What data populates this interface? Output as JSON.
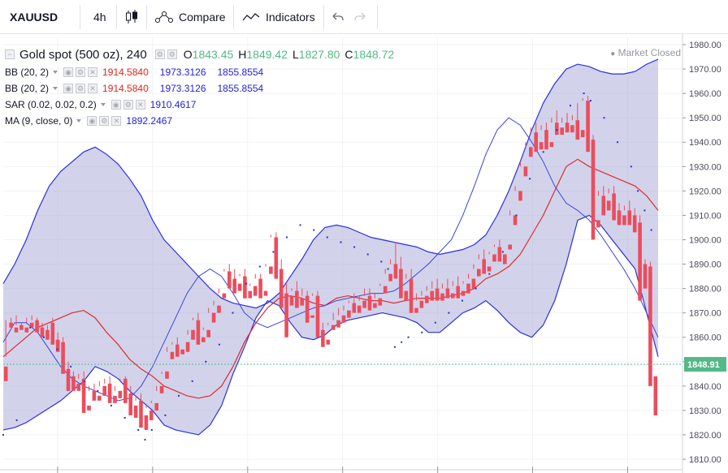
{
  "toolbar": {
    "symbol": "XAUUSD",
    "interval": "4h",
    "compare_label": "Compare",
    "indicators_label": "Indicators"
  },
  "legend": {
    "title": "Gold spot (500 oz), 240",
    "o_label": "O",
    "o_value": "1843.45",
    "h_label": "H",
    "h_value": "1849.42",
    "l_label": "L",
    "l_value": "1827.80",
    "c_label": "C",
    "c_value": "1848.72",
    "indicators": [
      {
        "label": "BB (20, 2)",
        "v1": "1914.5840",
        "v2": "1973.3126",
        "v3": "1855.8554"
      },
      {
        "label": "BB (20, 2)",
        "v1": "1914.5840",
        "v2": "1973.3126",
        "v3": "1855.8554"
      },
      {
        "label": "SAR (0.02, 0.02, 0.2)",
        "v1": "1910.4617"
      },
      {
        "label": "MA (9, close, 0)",
        "v1": "1892.2467"
      }
    ]
  },
  "market_status": "Market Closed",
  "price_label": "1848.91",
  "colors": {
    "up": "#53b987",
    "down": "#eb4d5c",
    "band_fill": "#9c9ed3",
    "band_line": "#2c2ee0",
    "basis": "#e02a2a",
    "ma": "#3b43e0",
    "sar": "#2233cc",
    "price_tag": "#53b987",
    "value_blue": "#2323d6",
    "value_red": "#e2251b"
  },
  "chart_data": {
    "type": "candlestick",
    "ylim": [
      1808,
      1983
    ],
    "yticks": [
      "1810.00",
      "1820.00",
      "1830.00",
      "1840.00",
      "1850.00",
      "1860.00",
      "1870.00",
      "1880.00",
      "1890.00",
      "1900.00",
      "1910.00",
      "1920.00",
      "1930.00",
      "1940.00",
      "1950.00",
      "1960.00",
      "1970.00",
      "1980.00"
    ],
    "last_price": 1848.91,
    "candles": [
      [
        1848,
        1867,
        1852,
        1842
      ],
      [
        1866,
        1868,
        1863,
        1864
      ],
      [
        1864,
        1869,
        1865,
        1862
      ],
      [
        1865,
        1866,
        1864,
        1863
      ],
      [
        1864,
        1868,
        1866,
        1862
      ],
      [
        1866,
        1869,
        1867,
        1864
      ],
      [
        1867,
        1868,
        1864,
        1862
      ],
      [
        1864,
        1866,
        1863,
        1860
      ],
      [
        1863,
        1865,
        1862,
        1859
      ],
      [
        1866,
        1868,
        1859,
        1857
      ],
      [
        1859,
        1862,
        1858,
        1854
      ],
      [
        1858,
        1860,
        1847,
        1845
      ],
      [
        1847,
        1850,
        1844,
        1838
      ],
      [
        1844,
        1846,
        1841,
        1838
      ],
      [
        1841,
        1845,
        1843,
        1838
      ],
      [
        1843,
        1846,
        1832,
        1829
      ],
      [
        1832,
        1840,
        1838,
        1830
      ],
      [
        1838,
        1841,
        1836,
        1834
      ],
      [
        1836,
        1842,
        1840,
        1834
      ],
      [
        1840,
        1843,
        1841,
        1836
      ],
      [
        1841,
        1844,
        1836,
        1833
      ],
      [
        1836,
        1840,
        1838,
        1833
      ],
      [
        1838,
        1842,
        1843,
        1835
      ],
      [
        1843,
        1844,
        1837,
        1833
      ],
      [
        1837,
        1840,
        1832,
        1828
      ],
      [
        1832,
        1836,
        1834,
        1827
      ],
      [
        1834,
        1837,
        1828,
        1823
      ],
      [
        1828,
        1832,
        1831,
        1822
      ],
      [
        1830,
        1834,
        1833,
        1826
      ],
      [
        1833,
        1838,
        1840,
        1830
      ],
      [
        1840,
        1845,
        1846,
        1837
      ],
      [
        1846,
        1856,
        1854,
        1843
      ],
      [
        1854,
        1858,
        1857,
        1851
      ],
      [
        1857,
        1860,
        1855,
        1852
      ],
      [
        1855,
        1858,
        1858,
        1853
      ],
      [
        1858,
        1861,
        1863,
        1854
      ],
      [
        1863,
        1868,
        1867,
        1859
      ],
      [
        1867,
        1870,
        1860,
        1857
      ],
      [
        1860,
        1864,
        1863,
        1858
      ],
      [
        1863,
        1872,
        1870,
        1860
      ],
      [
        1870,
        1875,
        1873,
        1866
      ],
      [
        1873,
        1880,
        1878,
        1870
      ],
      [
        1878,
        1888,
        1887,
        1876
      ],
      [
        1887,
        1890,
        1884,
        1880
      ],
      [
        1884,
        1888,
        1882,
        1878
      ],
      [
        1882,
        1886,
        1885,
        1879
      ],
      [
        1885,
        1888,
        1879,
        1876
      ],
      [
        1879,
        1882,
        1881,
        1876
      ],
      [
        1881,
        1886,
        1884,
        1877
      ],
      [
        1884,
        1886,
        1879,
        1876
      ],
      [
        1879,
        1890,
        1889,
        1877
      ],
      [
        1889,
        1902,
        1901,
        1886
      ],
      [
        1901,
        1903,
        1888,
        1884
      ],
      [
        1888,
        1892,
        1878,
        1872
      ],
      [
        1878,
        1882,
        1877,
        1860
      ],
      [
        1877,
        1880,
        1879,
        1873
      ],
      [
        1879,
        1883,
        1876,
        1872
      ],
      [
        1876,
        1880,
        1877,
        1873
      ],
      [
        1877,
        1879,
        1869,
        1866
      ],
      [
        1869,
        1878,
        1877,
        1868
      ],
      [
        1877,
        1879,
        1863,
        1860
      ],
      [
        1863,
        1866,
        1859,
        1856
      ],
      [
        1859,
        1866,
        1865,
        1857
      ],
      [
        1865,
        1870,
        1867,
        1863
      ],
      [
        1867,
        1872,
        1869,
        1864
      ],
      [
        1869,
        1873,
        1871,
        1866
      ],
      [
        1871,
        1875,
        1874,
        1868
      ],
      [
        1874,
        1878,
        1873,
        1870
      ],
      [
        1873,
        1877,
        1875,
        1870
      ],
      [
        1875,
        1880,
        1877,
        1872
      ],
      [
        1877,
        1880,
        1874,
        1871
      ],
      [
        1874,
        1878,
        1876,
        1872
      ],
      [
        1876,
        1882,
        1881,
        1873
      ],
      [
        1881,
        1888,
        1886,
        1878
      ],
      [
        1886,
        1892,
        1890,
        1883
      ],
      [
        1890,
        1899,
        1888,
        1884
      ],
      [
        1888,
        1893,
        1879,
        1876
      ],
      [
        1879,
        1886,
        1884,
        1875
      ],
      [
        1884,
        1888,
        1872,
        1870
      ],
      [
        1872,
        1878,
        1875,
        1870
      ],
      [
        1875,
        1879,
        1877,
        1872
      ],
      [
        1877,
        1881,
        1879,
        1874
      ],
      [
        1879,
        1883,
        1880,
        1875
      ],
      [
        1880,
        1884,
        1878,
        1875
      ],
      [
        1878,
        1882,
        1880,
        1875
      ],
      [
        1880,
        1884,
        1878,
        1876
      ],
      [
        1878,
        1883,
        1881,
        1876
      ],
      [
        1881,
        1885,
        1879,
        1876
      ],
      [
        1879,
        1883,
        1882,
        1877
      ],
      [
        1882,
        1886,
        1884,
        1878
      ],
      [
        1884,
        1890,
        1888,
        1880
      ],
      [
        1888,
        1894,
        1892,
        1885
      ],
      [
        1892,
        1896,
        1889,
        1886
      ],
      [
        1889,
        1895,
        1894,
        1887
      ],
      [
        1894,
        1898,
        1897,
        1891
      ],
      [
        1897,
        1900,
        1894,
        1891
      ],
      [
        1894,
        1898,
        1898,
        1890
      ],
      [
        1898,
        1912,
        1910,
        1896
      ],
      [
        1910,
        1922,
        1920,
        1906
      ],
      [
        1920,
        1932,
        1930,
        1916
      ],
      [
        1930,
        1940,
        1938,
        1926
      ],
      [
        1938,
        1946,
        1944,
        1934
      ],
      [
        1944,
        1948,
        1940,
        1936
      ],
      [
        1940,
        1947,
        1945,
        1937
      ],
      [
        1945,
        1948,
        1940,
        1937
      ],
      [
        1940,
        1950,
        1948,
        1938
      ],
      [
        1948,
        1953,
        1946,
        1943
      ],
      [
        1946,
        1950,
        1948,
        1943
      ],
      [
        1948,
        1952,
        1947,
        1944
      ],
      [
        1947,
        1951,
        1949,
        1944
      ],
      [
        1949,
        1956,
        1945,
        1941
      ],
      [
        1945,
        1958,
        1957,
        1942
      ],
      [
        1957,
        1959,
        1941,
        1936
      ],
      [
        1941,
        1943,
        1908,
        1900
      ],
      [
        1908,
        1920,
        1918,
        1905
      ],
      [
        1918,
        1922,
        1916,
        1910
      ],
      [
        1916,
        1921,
        1919,
        1912
      ],
      [
        1919,
        1922,
        1912,
        1908
      ],
      [
        1912,
        1915,
        1910,
        1906
      ],
      [
        1910,
        1914,
        1912,
        1906
      ],
      [
        1912,
        1916,
        1910,
        1906
      ],
      [
        1910,
        1913,
        1907,
        1903
      ],
      [
        1907,
        1910,
        1890,
        1875
      ],
      [
        1890,
        1892,
        1889,
        1880
      ],
      [
        1889,
        1891,
        1844,
        1840
      ],
      [
        1844,
        1849,
        1849,
        1828
      ]
    ],
    "bb_upper": [
      1882,
      1890,
      1900,
      1912,
      1922,
      1928,
      1932,
      1936,
      1938,
      1935,
      1931,
      1925,
      1918,
      1908,
      1900,
      1895,
      1890,
      1885,
      1880,
      1876,
      1874,
      1873,
      1872,
      1874,
      1878,
      1885,
      1892,
      1900,
      1905,
      1906,
      1905,
      1903,
      1901,
      1900,
      1899,
      1898,
      1897,
      1895,
      1894,
      1895,
      1896,
      1898,
      1902,
      1910,
      1920,
      1932,
      1945,
      1956,
      1964,
      1970,
      1972,
      1971,
      1969,
      1968,
      1968,
      1969,
      1972,
      1974
    ],
    "bb_lower": [
      1822,
      1823,
      1825,
      1828,
      1831,
      1834,
      1838,
      1842,
      1848,
      1846,
      1843,
      1838,
      1834,
      1830,
      1824,
      1822,
      1821,
      1820,
      1824,
      1832,
      1845,
      1856,
      1868,
      1875,
      1873,
      1866,
      1860,
      1859,
      1861,
      1865,
      1867,
      1868,
      1869,
      1870,
      1869,
      1868,
      1866,
      1862,
      1862,
      1866,
      1870,
      1872,
      1875,
      1871,
      1866,
      1862,
      1860,
      1865,
      1875,
      1890,
      1908,
      1910,
      1906,
      1900,
      1894,
      1888,
      1870,
      1852
    ],
    "bb_basis": [
      1852,
      1856,
      1860,
      1864,
      1866,
      1868,
      1870,
      1871,
      1868,
      1862,
      1857,
      1851,
      1847,
      1844,
      1840,
      1838,
      1836,
      1835,
      1836,
      1840,
      1848,
      1858,
      1866,
      1872,
      1876,
      1877,
      1876,
      1874,
      1873,
      1876,
      1877,
      1876,
      1875,
      1875,
      1874,
      1875,
      1876,
      1876,
      1876,
      1877,
      1878,
      1880,
      1884,
      1886,
      1889,
      1894,
      1902,
      1910,
      1920,
      1930,
      1933,
      1930,
      1928,
      1926,
      1924,
      1922,
      1918,
      1912
    ],
    "ma": [
      1858,
      1866,
      1866,
      1862,
      1855,
      1848,
      1843,
      1840,
      1838,
      1836,
      1834,
      1835,
      1840,
      1848,
      1858,
      1868,
      1878,
      1885,
      1888,
      1885,
      1878,
      1870,
      1866,
      1864,
      1866,
      1868,
      1870,
      1872,
      1873,
      1875,
      1876,
      1877,
      1878,
      1878,
      1879,
      1882,
      1886,
      1890,
      1895,
      1900,
      1910,
      1922,
      1935,
      1945,
      1950,
      1947,
      1940,
      1932,
      1922,
      1915,
      1912,
      1908,
      1902,
      1895,
      1888,
      1880,
      1870,
      1860
    ],
    "sar": [
      [
        0,
        1820
      ],
      [
        4,
        1826
      ],
      [
        8,
        1864
      ],
      [
        12,
        1860
      ],
      [
        16,
        1855
      ],
      [
        20,
        1848
      ],
      [
        24,
        1842
      ],
      [
        28,
        1838
      ],
      [
        32,
        1832
      ],
      [
        36,
        1827
      ],
      [
        40,
        1822
      ],
      [
        42,
        1818
      ],
      [
        44,
        1822
      ],
      [
        48,
        1828
      ],
      [
        52,
        1836
      ],
      [
        56,
        1842
      ],
      [
        60,
        1850
      ],
      [
        64,
        1857
      ],
      [
        68,
        1870
      ],
      [
        72,
        1882
      ],
      [
        76,
        1889
      ],
      [
        80,
        1895
      ],
      [
        84,
        1901
      ],
      [
        88,
        1906
      ],
      [
        92,
        1904
      ],
      [
        96,
        1901
      ],
      [
        100,
        1899
      ],
      [
        104,
        1897
      ],
      [
        108,
        1894
      ],
      [
        112,
        1891
      ],
      [
        114,
        1888
      ],
      [
        116,
        1856
      ],
      [
        118,
        1858
      ],
      [
        120,
        1860
      ],
      [
        124,
        1862
      ],
      [
        128,
        1866
      ],
      [
        132,
        1870
      ],
      [
        136,
        1875
      ],
      [
        140,
        1880
      ],
      [
        144,
        1886
      ],
      [
        148,
        1895
      ],
      [
        152,
        1910
      ],
      [
        156,
        1925
      ],
      [
        160,
        1936
      ],
      [
        164,
        1945
      ],
      [
        168,
        1955
      ],
      [
        172,
        1960
      ],
      [
        174,
        1957
      ],
      [
        178,
        1950
      ],
      [
        182,
        1940
      ],
      [
        186,
        1930
      ],
      [
        188,
        1920
      ],
      [
        190,
        1912
      ],
      [
        192,
        1904
      ]
    ],
    "x_ticks": 7
  }
}
